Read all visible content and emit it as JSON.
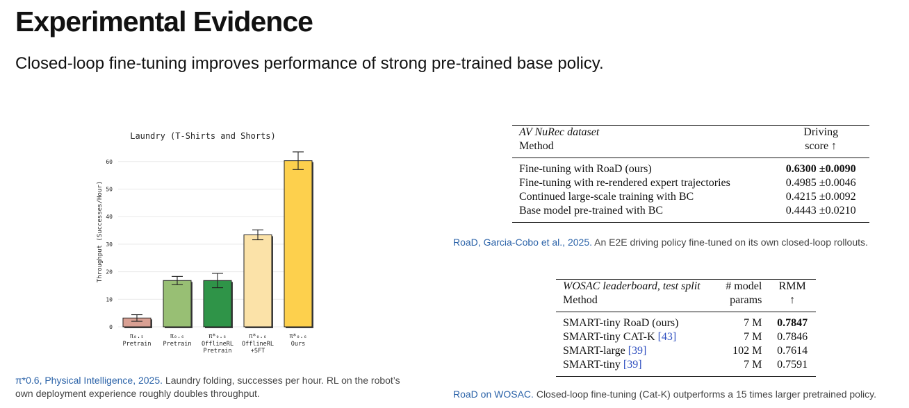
{
  "slide": {
    "title": "Experimental Evidence",
    "subtitle": "Closed-loop fine-tuning improves performance of strong pre-trained base policy."
  },
  "chart_data": {
    "type": "bar",
    "title": "Laundry (T-Shirts and Shorts)",
    "ylabel": "Throughput (Successes/Hour)",
    "xlabel": "",
    "ylim": [
      0,
      65
    ],
    "yticks": [
      0,
      10,
      20,
      30,
      40,
      50,
      60
    ],
    "grid": true,
    "categories": [
      {
        "top": "π₀.₅",
        "lines": [
          "Pretrain"
        ]
      },
      {
        "top": "π₀.₆",
        "lines": [
          "Pretrain"
        ]
      },
      {
        "top": "π*₀.₆",
        "lines": [
          "OfflineRL",
          "Pretrain"
        ]
      },
      {
        "top": "π*₀.₆",
        "lines": [
          "OfflineRL",
          "+SFT"
        ]
      },
      {
        "top": "π*₀.₆",
        "lines": [
          "Ours"
        ]
      }
    ],
    "values": [
      3.2,
      16.8,
      16.8,
      33.4,
      60.3
    ],
    "errors": [
      1.2,
      1.5,
      2.6,
      1.8,
      3.2
    ],
    "colors": [
      "#d9a093",
      "#98bf74",
      "#2f9448",
      "#fbe2a8",
      "#fdd04d"
    ]
  },
  "captions": {
    "chart_link": "π*0.6, Physical Intelligence, 2025.",
    "chart_text": " Laundry folding, successes per hour. RL on the robot’s own deployment experience roughly doubles throughput.",
    "t1_link": "RoaD, Garcia-Cobo et al., 2025.",
    "t1_text": " An E2E driving policy fine-tuned on its own closed-loop rollouts.",
    "t2_link": "RoaD on WOSAC.",
    "t2_text": " Closed-loop fine-tuning (Cat-K) outperforms a 15 times larger pretrained policy."
  },
  "table1": {
    "dataset": "AV NuRec dataset",
    "method_header": "Method",
    "score_header_1": "Driving",
    "score_header_2": "score ↑",
    "rows": [
      {
        "method": "Fine-tuning with RoaD (ours)",
        "score": "0.6300 ±0.0090"
      },
      {
        "method": "Fine-tuning with re-rendered expert trajectories",
        "score": "0.4985 ±0.0046"
      },
      {
        "method": "Continued large-scale training with BC",
        "score": "0.4215 ±0.0092"
      },
      {
        "method": "Base model pre-trained with BC",
        "score": "0.4443 ±0.0210"
      }
    ]
  },
  "table2": {
    "dataset": "WOSAC leaderboard, test split",
    "method_header": "Method",
    "params_header_1": "# model",
    "params_header_2": "params",
    "rmm_header_1": "RMM",
    "rmm_header_2": "↑",
    "rows": [
      {
        "method": "SMART-tiny RoaD (ours)",
        "ref": "",
        "params": "7 M",
        "rmm": "0.7847"
      },
      {
        "method": "SMART-tiny CAT-K ",
        "ref": "[43]",
        "params": "7 M",
        "rmm": "0.7846"
      },
      {
        "method": "SMART-large ",
        "ref": "[39]",
        "params": "102 M",
        "rmm": "0.7614"
      },
      {
        "method": "SMART-tiny ",
        "ref": "[39]",
        "params": "7 M",
        "rmm": "0.7591"
      }
    ]
  }
}
